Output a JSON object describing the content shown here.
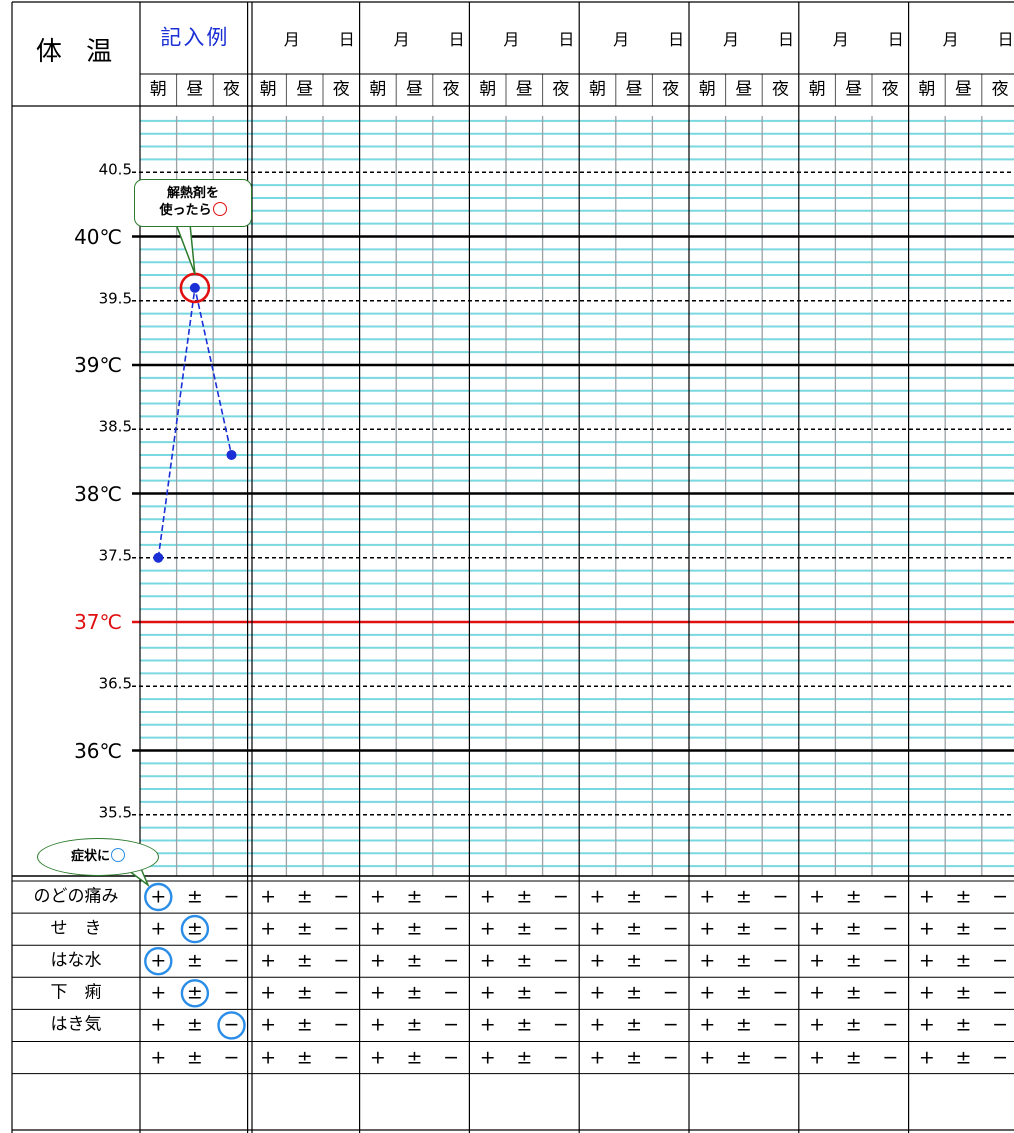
{
  "header": {
    "title": "体 温",
    "example_label": "記入例",
    "month_label": "月",
    "day_label": "日",
    "times": [
      "朝",
      "昼",
      "夜"
    ]
  },
  "temperature_labels": {
    "major": [
      "40℃",
      "39℃",
      "38℃",
      "37℃",
      "36℃"
    ],
    "minor": [
      "40.5",
      "39.5",
      "38.5",
      "37.5",
      "36.5",
      "35.5"
    ]
  },
  "symptoms": {
    "rows": [
      "のどの痛み",
      "せ　き",
      "はな水",
      "下　痢",
      "はき気",
      ""
    ],
    "symbols": [
      "+",
      "±",
      "−"
    ]
  },
  "callouts": {
    "fever_reducer": {
      "line1": "解熱剤を",
      "line2": "使ったら"
    },
    "symptom": {
      "text": "症状に"
    }
  },
  "colors": {
    "example_text": "#1a2fd6",
    "grid_cyan": "#7ad8e0",
    "normal_temp_line": "#e01010",
    "plot_line": "#1a2fd6",
    "symptom_circle": "#2a8de8",
    "callout_border": "#2c7a2c"
  },
  "chart_data": {
    "type": "line",
    "x": [
      "朝",
      "昼",
      "夜"
    ],
    "series": [
      {
        "values": [
          37.5,
          39.6,
          38.3
        ]
      }
    ],
    "ylim": [
      35.1,
      41.0
    ],
    "marked_points": [
      {
        "x": "昼",
        "y": 39.6,
        "note": "解熱剤を使ったら"
      }
    ],
    "symptom_marks": [
      {
        "symptom": "のどの痛み",
        "value": "+"
      },
      {
        "symptom": "せ　き",
        "value": "±"
      },
      {
        "symptom": "はな水",
        "value": "+"
      },
      {
        "symptom": "下　痢",
        "value": "±"
      },
      {
        "symptom": "はき気",
        "value": "−"
      }
    ]
  }
}
